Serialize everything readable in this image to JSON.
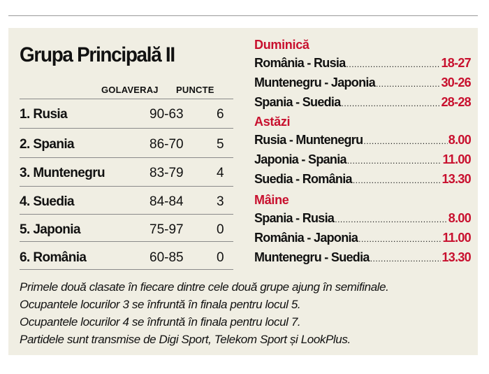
{
  "standings": {
    "title": "Grupa Principală II",
    "headers": {
      "goal_difference": "GOLAVERAJ",
      "points": "PUNCTE"
    },
    "rows": [
      {
        "team": "1. Rusia",
        "goal_difference": "90-63",
        "points": "6"
      },
      {
        "team": "2. Spania",
        "goal_difference": "86-70",
        "points": "5"
      },
      {
        "team": "3. Muntenegru",
        "goal_difference": "83-79",
        "points": "4"
      },
      {
        "team": "4. Suedia",
        "goal_difference": "84-84",
        "points": "3"
      },
      {
        "team": "5. Japonia",
        "goal_difference": "75-97",
        "points": "0"
      },
      {
        "team": "6. România",
        "goal_difference": "60-85",
        "points": "0"
      }
    ]
  },
  "schedule": [
    {
      "day": "Duminică",
      "matches": [
        {
          "teams": "România - Rusia",
          "result": "18-27"
        },
        {
          "teams": "Muntenegru - Japonia",
          "result": "30-26"
        },
        {
          "teams": "Spania - Suedia",
          "result": "28-28"
        }
      ]
    },
    {
      "day": "Astăzi",
      "matches": [
        {
          "teams": "Rusia - Muntenegru",
          "result": "8.00"
        },
        {
          "teams": "Japonia - Spania",
          "result": "11.00"
        },
        {
          "teams": "Suedia - România",
          "result": "13.30"
        }
      ]
    },
    {
      "day": "Mâine",
      "matches": [
        {
          "teams": "Spania - Rusia",
          "result": "8.00"
        },
        {
          "teams": "România - Japonia",
          "result": "11.00"
        },
        {
          "teams": "Muntenegru - Suedia",
          "result": "13.30"
        }
      ]
    }
  ],
  "notes": [
    "Primele două clasate în fiecare dintre cele două grupe ajung în semifinale.",
    "Ocupantele locurilor 3 se înfruntă în finala pentru locul 5.",
    "Ocupantele locurilor 4 se înfruntă în finala pentru locul 7.",
    "Partidele sunt transmise de Digi Sport, Telekom Sport și LookPlus."
  ],
  "colors": {
    "panel_background": "#f0eee3",
    "accent_red": "#c8102e",
    "text": "#111111"
  }
}
